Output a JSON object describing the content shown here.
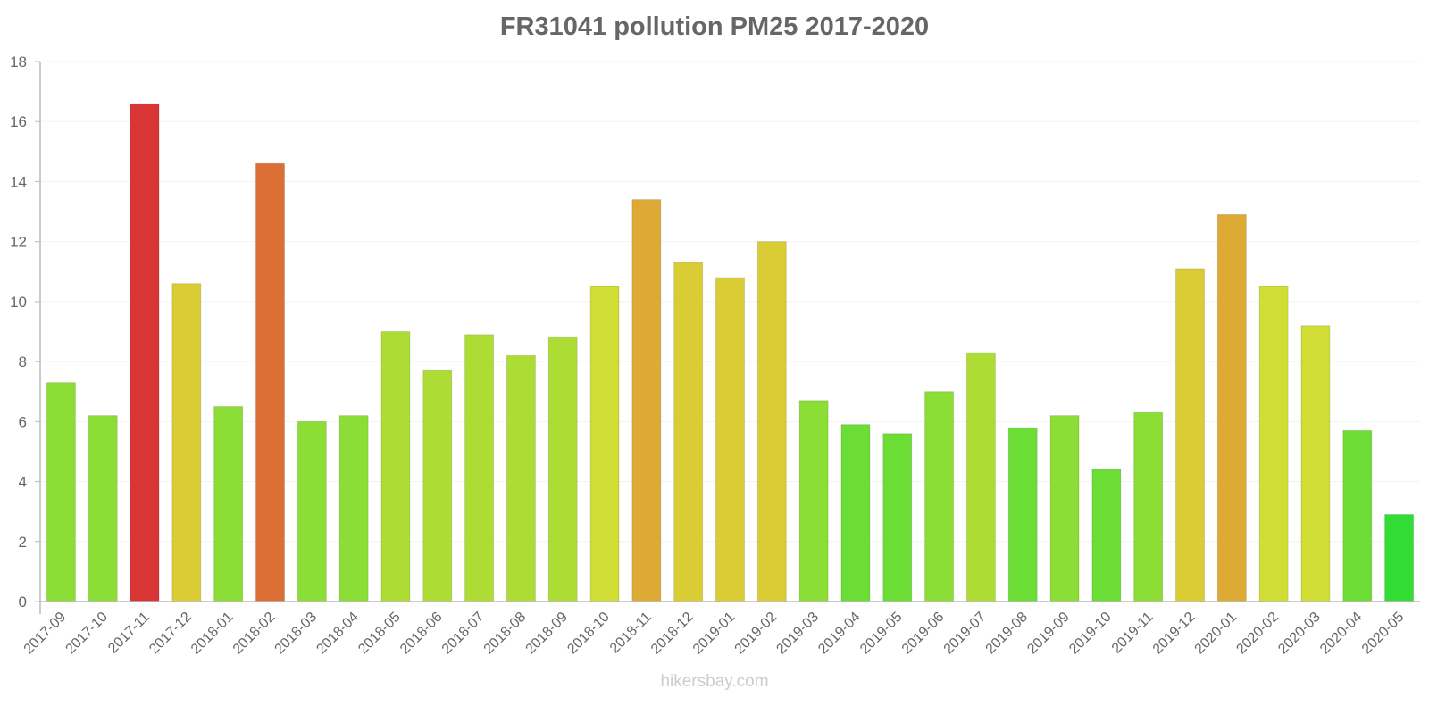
{
  "chart_data": {
    "type": "bar",
    "title": "FR31041 pollution PM25 2017-2020",
    "xlabel": "",
    "ylabel": "",
    "ylim": [
      0,
      18
    ],
    "yticks": [
      0,
      2,
      4,
      6,
      8,
      10,
      12,
      14,
      16,
      18
    ],
    "grid": true,
    "legend": null,
    "categories": [
      "2017-09",
      "2017-10",
      "2017-11",
      "2017-12",
      "2018-01",
      "2018-02",
      "2018-03",
      "2018-04",
      "2018-05",
      "2018-06",
      "2018-07",
      "2018-08",
      "2018-09",
      "2018-10",
      "2018-11",
      "2018-12",
      "2019-01",
      "2019-02",
      "2019-03",
      "2019-04",
      "2019-05",
      "2019-06",
      "2019-07",
      "2019-08",
      "2019-09",
      "2019-10",
      "2019-11",
      "2019-12",
      "2020-01",
      "2020-02",
      "2020-03",
      "2020-04",
      "2020-05"
    ],
    "values": [
      7.3,
      6.2,
      16.6,
      10.6,
      6.5,
      14.6,
      6.0,
      6.2,
      9.0,
      7.7,
      8.9,
      8.2,
      8.8,
      10.5,
      13.4,
      11.3,
      10.8,
      12.0,
      6.7,
      5.9,
      5.6,
      7.0,
      8.3,
      5.8,
      6.2,
      4.4,
      6.3,
      11.1,
      12.9,
      10.5,
      9.2,
      5.7,
      2.9
    ],
    "colors": [
      "#8cdd35",
      "#8cdd35",
      "#da3535",
      "#dacc35",
      "#8cdd35",
      "#dc6f35",
      "#8cdd35",
      "#8cdd35",
      "#addd35",
      "#addd35",
      "#addd35",
      "#addd35",
      "#addd35",
      "#cfdd35",
      "#dcaa35",
      "#dacc35",
      "#dacc35",
      "#dacc35",
      "#8cdd35",
      "#6cdd35",
      "#6cdd35",
      "#8cdd35",
      "#addd35",
      "#6cdd35",
      "#8cdd35",
      "#6cdd35",
      "#8cdd35",
      "#dacc35",
      "#dcaa35",
      "#cfdd35",
      "#cfdd35",
      "#6cdd35",
      "#33dd35"
    ]
  },
  "watermark": "hikersbay.com"
}
